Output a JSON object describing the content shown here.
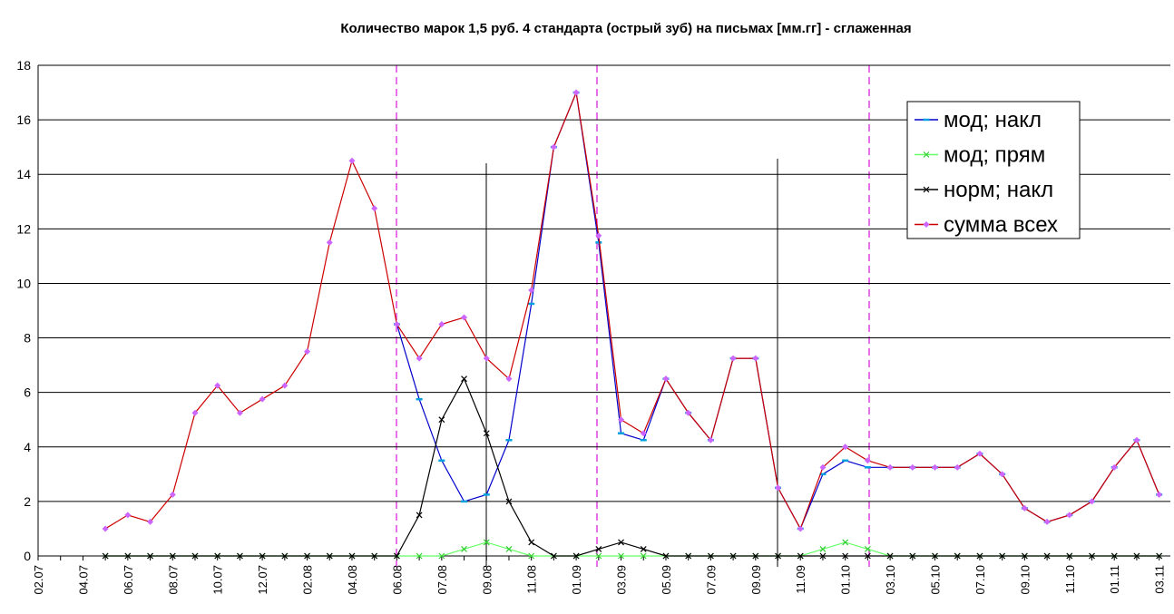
{
  "chart_data": {
    "type": "line",
    "title": "Количество марок 1,5 руб. 4 стандарта (острый зуб) на письмах [мм.гг] - сглаженная",
    "categories": [
      "02.07",
      null,
      "04.07",
      null,
      "06.07",
      null,
      "08.07",
      null,
      "10.07",
      null,
      "12.07",
      null,
      "02.08",
      null,
      "04.08",
      null,
      "06.08",
      null,
      "07.08",
      null,
      "09.08",
      null,
      "11.08",
      null,
      "01.09",
      null,
      "03.09",
      null,
      "05.09",
      null,
      "07.09",
      null,
      "09.09",
      null,
      "11.09",
      null,
      "01.10",
      null,
      "03.10",
      null,
      "05.10",
      null,
      "07.10",
      null,
      "09.10",
      null,
      "11.10",
      null,
      "01.11",
      null,
      "03.11"
    ],
    "series": [
      {
        "name": "мод; накл",
        "color": "#0000cc",
        "marker_color": "#00a0e0",
        "marker": "dash",
        "values": [
          null,
          null,
          null,
          null,
          null,
          null,
          null,
          null,
          null,
          null,
          null,
          null,
          null,
          null,
          null,
          null,
          8.5,
          5.75,
          3.5,
          2.0,
          2.25,
          4.25,
          9.25,
          15,
          17,
          11.5,
          4.5,
          4.25,
          6.5,
          5.25,
          4.25,
          7.25,
          7.25,
          2.5,
          1.0,
          3.0,
          3.5,
          3.25,
          3.25,
          3.25,
          3.25,
          3.25,
          3.75,
          3.0,
          1.75,
          1.25,
          1.5,
          2.0,
          3.25,
          4.25,
          2.25
        ]
      },
      {
        "name": "мод; прям",
        "color": "#66ff66",
        "marker_color": "#33cc33",
        "marker": "x",
        "values": [
          null,
          null,
          null,
          0,
          0,
          0,
          0,
          0,
          0,
          0,
          0,
          0,
          0,
          0,
          0,
          0,
          0,
          0,
          0,
          0.25,
          0.5,
          0.25,
          0,
          0,
          0,
          0,
          0,
          0,
          0,
          0,
          0,
          0,
          0,
          0,
          0,
          0.25,
          0.5,
          0.25,
          0,
          0,
          0,
          0,
          0,
          0,
          0,
          0,
          0,
          0,
          0,
          0,
          0
        ]
      },
      {
        "name": "норм; накл",
        "color": "#000000",
        "marker_color": "#000000",
        "marker": "x",
        "values": [
          null,
          null,
          null,
          0,
          0,
          0,
          0,
          0,
          0,
          0,
          0,
          0,
          0,
          0,
          0,
          0,
          0,
          1.5,
          5.0,
          6.5,
          4.5,
          2.0,
          0.5,
          0,
          0,
          0.25,
          0.5,
          0.25,
          0,
          0,
          0,
          0,
          0,
          0,
          0,
          0,
          0,
          0,
          0,
          0,
          0,
          0,
          0,
          0,
          0,
          0,
          0,
          0,
          0,
          0,
          0
        ]
      },
      {
        "name": "сумма всех",
        "color": "#cc0000",
        "marker_color": "#cc66ff",
        "marker": "diamond",
        "values": [
          null,
          null,
          null,
          1.0,
          1.5,
          1.25,
          2.25,
          5.25,
          6.25,
          5.25,
          5.75,
          6.25,
          7.5,
          11.5,
          14.5,
          12.75,
          8.5,
          7.25,
          8.5,
          8.75,
          7.25,
          6.5,
          9.75,
          15,
          17,
          11.75,
          5.0,
          4.5,
          6.5,
          5.25,
          4.25,
          7.25,
          7.25,
          2.5,
          1.0,
          3.25,
          4.0,
          3.5,
          3.25,
          3.25,
          3.25,
          3.25,
          3.75,
          3.0,
          1.75,
          1.25,
          1.5,
          2.0,
          3.25,
          4.25,
          2.25
        ]
      }
    ],
    "ylim": [
      0,
      18
    ],
    "yticks": [
      0,
      2,
      4,
      6,
      8,
      10,
      12,
      14,
      16,
      18
    ],
    "grid": true,
    "legend": "top-right"
  }
}
